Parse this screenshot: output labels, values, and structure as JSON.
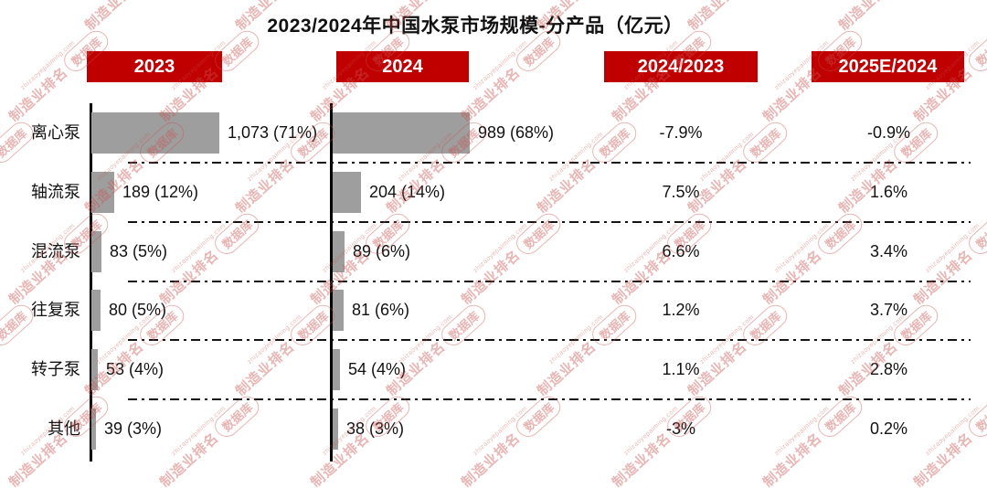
{
  "title": "2023/2024年中国水泵市场规模-分产品（亿元）",
  "header": {
    "col_2023": "2023",
    "col_2024": "2024",
    "col_yoy": "2024/2023",
    "col_forecast": "2025E/2024"
  },
  "watermark": {
    "brand": "制造业排名",
    "db": "数据库",
    "site": "zhizaoyepaiming.com"
  },
  "colors": {
    "badge_red": "#C00000",
    "bar_gray": "#9E9E9E",
    "axis_black": "#000000",
    "watermark_red": "#C9524F"
  },
  "chart_data": {
    "type": "bar",
    "orientation": "horizontal",
    "title": "2023/2024年中国水泵市场规模-分产品（亿元）",
    "unit": "亿元",
    "legend": "none",
    "gridlines": "dash-dot separators between category rows",
    "categories": [
      "离心泵",
      "轴流泵",
      "混流泵",
      "往复泵",
      "转子泵",
      "其他"
    ],
    "series": [
      {
        "name": "2023",
        "values": [
          1073,
          189,
          83,
          80,
          53,
          39
        ],
        "labels": [
          "1,073 (71%)",
          "189 (12%)",
          "83 (5%)",
          "80 (5%)",
          "53 (4%)",
          "39 (3%)"
        ]
      },
      {
        "name": "2024",
        "values": [
          989,
          204,
          89,
          81,
          54,
          38
        ],
        "labels": [
          "989 (68%)",
          "204 (14%)",
          "89 (6%)",
          "81 (6%)",
          "54 (4%)",
          "38 (3%)"
        ]
      }
    ],
    "change_columns": [
      {
        "name": "2024/2023",
        "values": [
          "-7.9%",
          "7.5%",
          "6.6%",
          "1.2%",
          "1.1%",
          "-3%"
        ]
      },
      {
        "name": "2025E/2024",
        "values": [
          "-0.9%",
          "1.6%",
          "3.4%",
          "3.7%",
          "2.8%",
          "0.2%"
        ]
      }
    ]
  }
}
